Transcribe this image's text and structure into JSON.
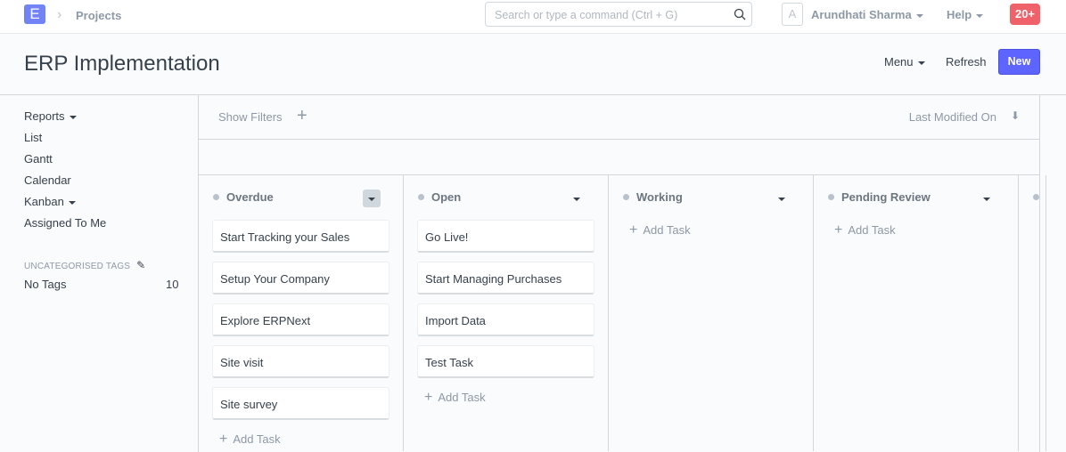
{
  "nav": {
    "logo": "E",
    "breadcrumb": "Projects",
    "search_placeholder": "Search or type a command (Ctrl + G)",
    "avatar": "A",
    "user": "Arundhati Sharma",
    "help": "Help",
    "notifications": "20+"
  },
  "page": {
    "title": "ERP Implementation",
    "menu": "Menu",
    "refresh": "Refresh",
    "new": "New"
  },
  "sidebar": {
    "items": [
      {
        "label": "Reports",
        "dropdown": true
      },
      {
        "label": "List"
      },
      {
        "label": "Gantt"
      },
      {
        "label": "Calendar"
      },
      {
        "label": "Kanban",
        "dropdown": true
      },
      {
        "label": "Assigned To Me"
      }
    ],
    "tags_heading": "UNCATEGORISED TAGS",
    "no_tags": "No Tags",
    "no_tags_count": "10"
  },
  "toolbar": {
    "show_filters": "Show Filters",
    "sort": "Last Modified On"
  },
  "columns": [
    {
      "title": "Overdue",
      "cards": [
        "Start Tracking your Sales",
        "Setup Your Company",
        "Explore ERPNext",
        "Site visit",
        "Site survey"
      ]
    },
    {
      "title": "Open",
      "cards": [
        "Go Live!",
        "Start Managing Purchases",
        "Import Data",
        "Test Task"
      ]
    },
    {
      "title": "Working",
      "cards": []
    },
    {
      "title": "Pending Review",
      "cards": []
    }
  ],
  "add_task": "Add Task",
  "colors": {
    "primary": "#5e64ff",
    "badge": "#f0626a",
    "logo": "#7283f5"
  }
}
